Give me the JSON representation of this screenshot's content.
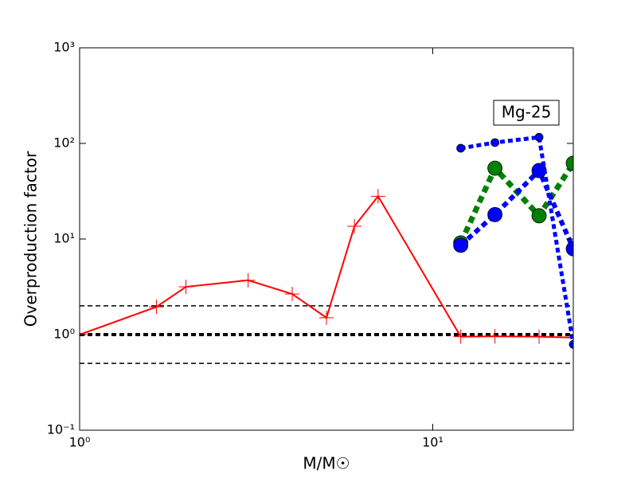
{
  "chart_data": {
    "type": "line",
    "xlabel": "M/M☉",
    "ylabel": "Overproduction factor",
    "annotation": "Mg-25",
    "xscale": "log",
    "yscale": "log",
    "xlim": [
      1,
      25
    ],
    "ylim": [
      0.1,
      1000
    ],
    "xticks": [
      {
        "value": 1,
        "label": "10⁰"
      },
      {
        "value": 10,
        "label": "10¹"
      }
    ],
    "yticks": [
      {
        "value": 0.1,
        "label": "10⁻¹"
      },
      {
        "value": 1,
        "label": "10⁰"
      },
      {
        "value": 10,
        "label": "10¹"
      },
      {
        "value": 100,
        "label": "10²"
      },
      {
        "value": 1000,
        "label": "10³"
      }
    ],
    "hlines": [
      {
        "value": 2,
        "color": "#000000",
        "linewidth": 1.5
      },
      {
        "value": 1,
        "color": "#000000",
        "linewidth": 4
      },
      {
        "value": 0.5,
        "color": "#000000",
        "linewidth": 1.5
      }
    ],
    "series": [
      {
        "color": "#ff0000",
        "linestyle": "solid",
        "linewidth": 2,
        "marker": "plus",
        "marker_size": 9,
        "x": [
          1,
          1.65,
          2,
          3,
          4,
          5,
          6,
          7,
          12,
          15,
          20,
          25
        ],
        "values": [
          1.0,
          1.95,
          3.16,
          3.7,
          2.66,
          1.5,
          13.6,
          28,
          0.95,
          0.96,
          0.95,
          0.93
        ]
      },
      {
        "color": "#008000",
        "linestyle": "dotted",
        "linewidth": 7,
        "marker": "circle",
        "marker_size": 9,
        "x": [
          12,
          15,
          20,
          25
        ],
        "values": [
          9.1,
          55,
          17.5,
          62
        ]
      },
      {
        "color": "#0000ff",
        "linestyle": "dotted",
        "linewidth": 6,
        "marker": "circle",
        "marker_size": 9,
        "x": [
          12,
          15,
          20,
          25
        ],
        "values": [
          8.6,
          18,
          52,
          7.9
        ]
      },
      {
        "color": "#0000ff",
        "linestyle": "dotted",
        "linewidth": 5,
        "marker": "circle",
        "marker_size": 5,
        "x": [
          12,
          15,
          20,
          25
        ],
        "values": [
          89,
          102,
          116,
          0.79
        ]
      }
    ]
  }
}
